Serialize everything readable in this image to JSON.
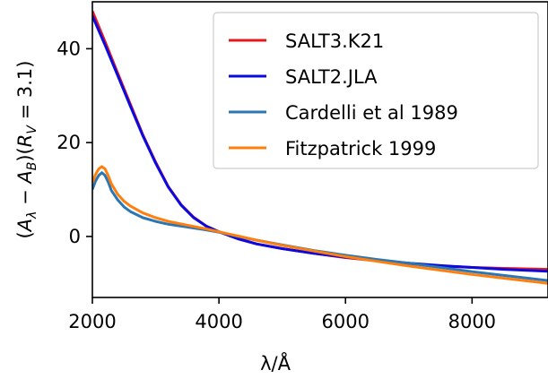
{
  "chart_data": {
    "type": "line",
    "title": "",
    "xlabel": "λ/Å",
    "ylabel": "(Aλ − AB)(RV = 3.1)",
    "xlim": [
      2000,
      9200
    ],
    "ylim": [
      -13,
      50
    ],
    "xticks": [
      2000,
      4000,
      6000,
      8000
    ],
    "yticks": [
      0,
      20,
      40
    ],
    "grid": false,
    "legend_position": "top-right",
    "series": [
      {
        "name": "SALT3.K21",
        "color": "#e8191d",
        "x": [
          2000,
          2200,
          2400,
          2600,
          2800,
          3000,
          3200,
          3400,
          3600,
          3800,
          4000,
          4300,
          4600,
          5000,
          5500,
          6000,
          6500,
          7000,
          7500,
          8000,
          8500,
          9200
        ],
        "y": [
          48,
          41.5,
          34.8,
          28.2,
          21.6,
          15.8,
          10.6,
          6.8,
          4.1,
          2.2,
          1.0,
          -0.5,
          -1.6,
          -2.6,
          -3.6,
          -4.5,
          -5.2,
          -5.8,
          -6.3,
          -6.6,
          -6.8,
          -7.0
        ]
      },
      {
        "name": "SALT2.JLA",
        "color": "#0a0ae0",
        "x": [
          2000,
          2200,
          2400,
          2600,
          2800,
          3000,
          3200,
          3400,
          3600,
          3800,
          4000,
          4300,
          4600,
          5000,
          5500,
          6000,
          6500,
          7000,
          7500,
          8000,
          8500,
          9200
        ],
        "y": [
          47,
          40.8,
          34.3,
          27.8,
          21.4,
          15.6,
          10.5,
          6.7,
          4.0,
          2.2,
          1.0,
          -0.5,
          -1.6,
          -2.6,
          -3.6,
          -4.4,
          -5.1,
          -5.7,
          -6.2,
          -6.6,
          -7.0,
          -7.4
        ]
      },
      {
        "name": "Cardelli et al 1989",
        "color": "#2a77b4",
        "x": [
          2000,
          2050,
          2100,
          2150,
          2200,
          2250,
          2300,
          2400,
          2500,
          2600,
          2800,
          3000,
          3200,
          3500,
          3800,
          4000,
          4300,
          4600,
          5000,
          5500,
          6000,
          6500,
          7000,
          7500,
          8000,
          8500,
          9200
        ],
        "y": [
          10.0,
          11.8,
          13.0,
          13.6,
          13.0,
          11.6,
          9.8,
          7.8,
          6.3,
          5.3,
          4.0,
          3.2,
          2.6,
          2.0,
          1.4,
          0.9,
          0.0,
          -0.8,
          -1.8,
          -3.0,
          -4.0,
          -4.9,
          -5.7,
          -6.6,
          -7.5,
          -8.3,
          -9.4
        ]
      },
      {
        "name": "Fitzpatrick 1999",
        "color": "#ff7f0e",
        "x": [
          2000,
          2050,
          2100,
          2150,
          2200,
          2250,
          2300,
          2400,
          2500,
          2600,
          2800,
          3000,
          3200,
          3500,
          3800,
          4000,
          4300,
          4600,
          5000,
          5500,
          6000,
          6500,
          7000,
          7500,
          8000,
          8500,
          9200
        ],
        "y": [
          11.5,
          13.2,
          14.4,
          14.9,
          14.4,
          13.0,
          11.2,
          9.0,
          7.5,
          6.5,
          5.0,
          4.0,
          3.2,
          2.4,
          1.6,
          1.0,
          0.1,
          -0.8,
          -1.9,
          -3.1,
          -4.3,
          -5.3,
          -6.3,
          -7.2,
          -8.1,
          -8.9,
          -10.0
        ]
      }
    ]
  }
}
